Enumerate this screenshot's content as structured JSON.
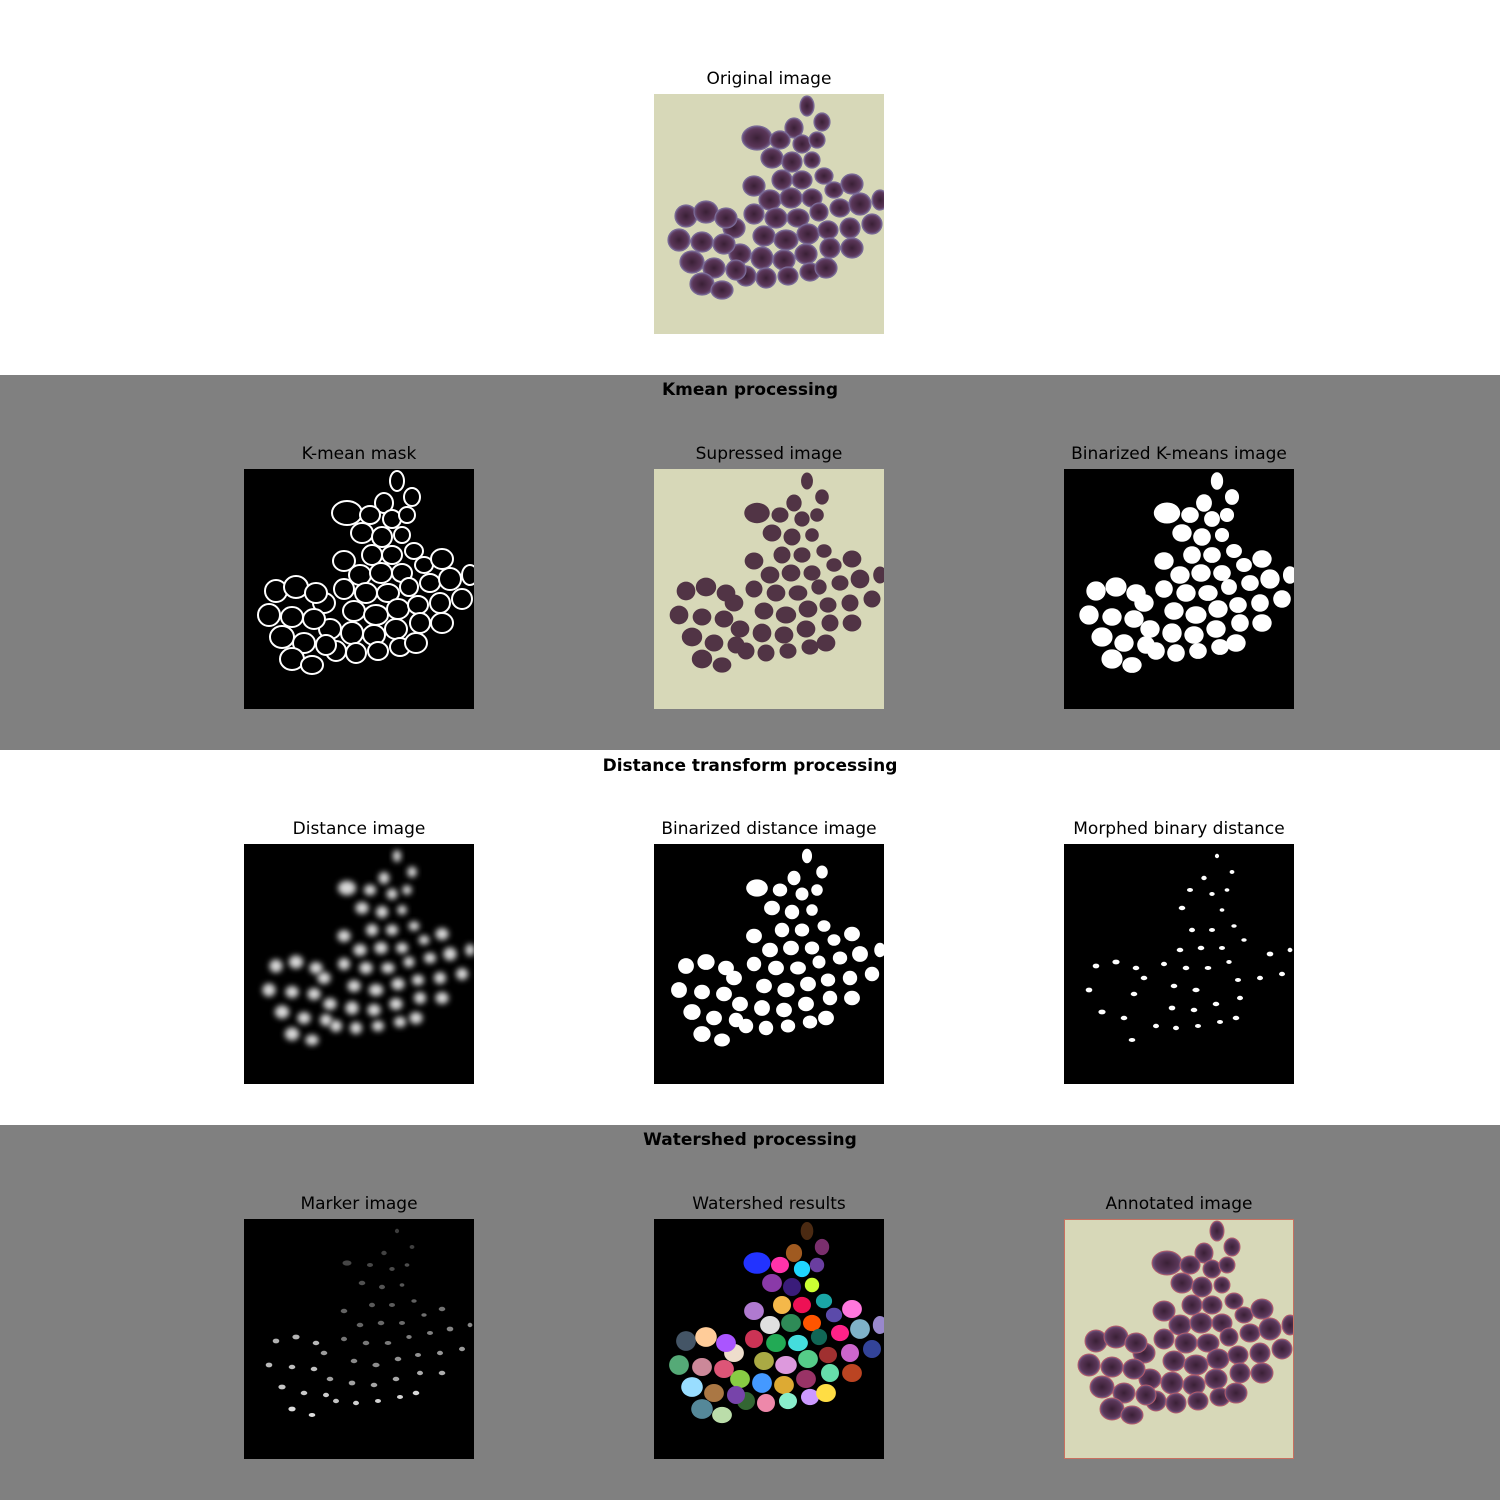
{
  "original": {
    "title": "Original image"
  },
  "sections": [
    {
      "heading": "Kmean processing",
      "background": "#808080",
      "panels": [
        {
          "title": "K-mean mask",
          "render": "outline"
        },
        {
          "title": "Supressed image",
          "render": "suppressed"
        },
        {
          "title": "Binarized K-means image",
          "render": "binary"
        }
      ]
    },
    {
      "heading": "Distance transform processing",
      "background": "#ffffff",
      "panels": [
        {
          "title": "Distance image",
          "render": "distance"
        },
        {
          "title": "Binarized distance image",
          "render": "binsmall"
        },
        {
          "title": "Morphed binary distance",
          "render": "morph"
        }
      ]
    },
    {
      "heading": "Watershed processing",
      "background": "#808080",
      "panels": [
        {
          "title": "Marker image",
          "render": "marker"
        },
        {
          "title": "Watershed results",
          "render": "watershed"
        },
        {
          "title": "Annotated image",
          "render": "annotated"
        }
      ]
    }
  ],
  "colors": {
    "microscope_background": "#d7d8b8",
    "cell_stain": "#4a2b45",
    "suppressed_cell": "#513445",
    "annotation_border": "#c87060"
  }
}
